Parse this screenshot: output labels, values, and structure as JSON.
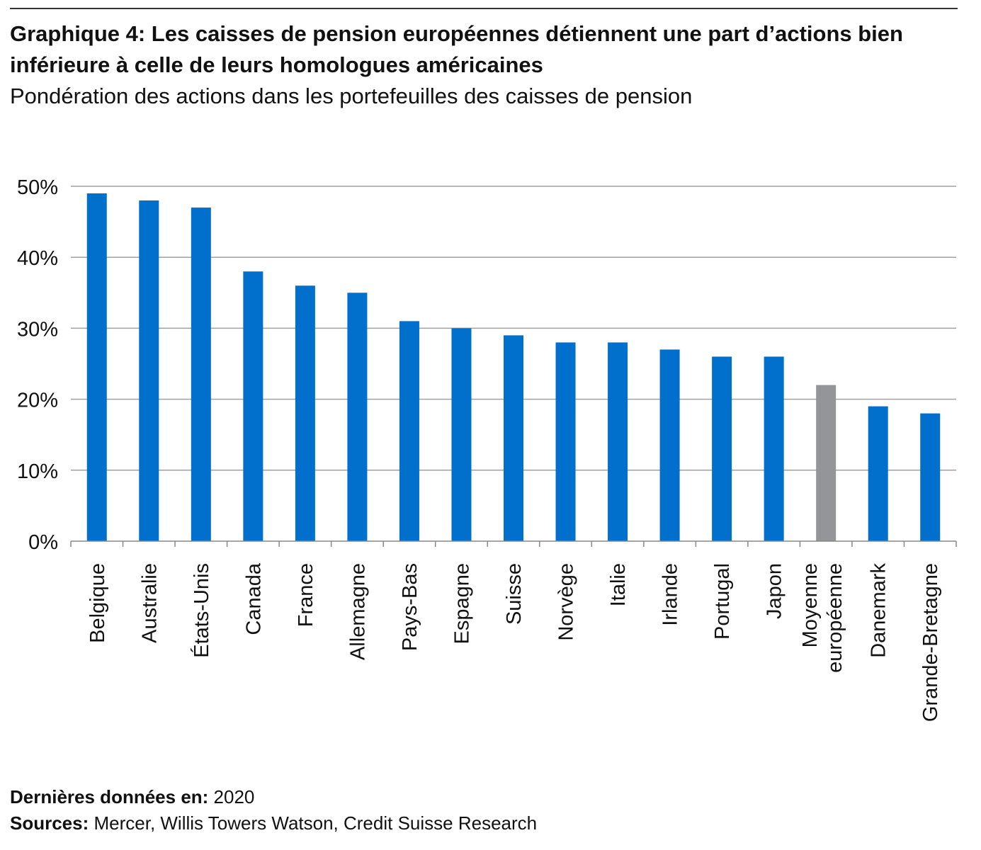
{
  "title": "Graphique 4: Les caisses de pension européennes détiennent une part d’actions bien inférieure à celle de leurs homologues américaines",
  "subtitle": "Pondération des actions dans les portefeuilles des caisses de pension",
  "footer": {
    "data_label": "Dernières données en:",
    "data_value": " 2020",
    "sources_label": "Sources:",
    "sources_value": " Mercer, Willis Towers Watson, Credit Suisse Research"
  },
  "chart_data": {
    "type": "bar",
    "categories": [
      "Belgique",
      "Australie",
      "États-Unis",
      "Canada",
      "France",
      "Allemagne",
      "Pays-Bas",
      "Espagne",
      "Suisse",
      "Norvège",
      "Italie",
      "Irlande",
      "Portugal",
      "Japon",
      "Moyenne européenne",
      "Danemark",
      "Grande-Bretagne"
    ],
    "values": [
      49,
      48,
      47,
      38,
      36,
      35,
      31,
      30,
      29,
      28,
      28,
      27,
      26,
      26,
      22,
      19,
      18
    ],
    "unit": "%",
    "ylim": [
      0,
      50
    ],
    "yticks": [
      "0%",
      "10%",
      "20%",
      "30%",
      "40%",
      "50%"
    ],
    "grid": true,
    "colors": {
      "default": "#0070CC",
      "highlight": "#939598"
    },
    "highlight_category": "Moyenne européenne"
  }
}
